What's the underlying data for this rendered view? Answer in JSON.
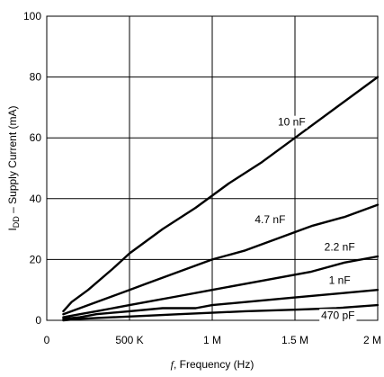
{
  "chart_data": {
    "type": "line",
    "xlabel_italic": "f",
    "xlabel_rest": ", Frequency (Hz)",
    "ylabel_main": "I",
    "ylabel_sub": "DD",
    "ylabel_rest": " – Supply Current (mA)",
    "xlim": [
      0,
      2000000
    ],
    "ylim": [
      0,
      100
    ],
    "grid": true,
    "x_ticks": [
      {
        "value": 0,
        "label": "0"
      },
      {
        "value": 500000,
        "label": "500 K"
      },
      {
        "value": 1000000,
        "label": "1 M"
      },
      {
        "value": 1500000,
        "label": "1.5 M"
      },
      {
        "value": 2000000,
        "label": "2 M"
      }
    ],
    "y_ticks": [
      {
        "value": 0,
        "label": "0"
      },
      {
        "value": 20,
        "label": "20"
      },
      {
        "value": 40,
        "label": "40"
      },
      {
        "value": 60,
        "label": "60"
      },
      {
        "value": 80,
        "label": "80"
      },
      {
        "value": 100,
        "label": "100"
      }
    ],
    "series": [
      {
        "name": "10 nF",
        "x": [
          100000,
          150000,
          250000,
          400000,
          500000,
          700000,
          900000,
          1100000,
          1300000,
          1500000,
          1750000,
          2000000
        ],
        "values": [
          3,
          6,
          10,
          17,
          22,
          30,
          37,
          45,
          52,
          60,
          70,
          80
        ],
        "label_x": 1480000,
        "label_y": 64
      },
      {
        "name": "4.7 nF",
        "x": [
          100000,
          200000,
          300000,
          400000,
          500000,
          600000,
          800000,
          1000000,
          1200000,
          1400000,
          1600000,
          1800000,
          2000000
        ],
        "values": [
          2,
          4,
          6,
          8,
          10,
          12,
          16,
          20,
          23,
          27,
          31,
          34,
          38
        ],
        "label_x": 1350000,
        "label_y": 32
      },
      {
        "name": "2.2 nF",
        "x": [
          100000,
          200000,
          300000,
          400000,
          500000,
          600000,
          800000,
          1000000,
          1200000,
          1400000,
          1600000,
          1800000,
          2000000
        ],
        "values": [
          1,
          2,
          3,
          4,
          5,
          6,
          8,
          10,
          12,
          14,
          16,
          19,
          21
        ],
        "label_x": 1770000,
        "label_y": 23
      },
      {
        "name": "1 nF",
        "x": [
          100000,
          200000,
          300000,
          500000,
          700000,
          900000,
          1000000,
          1200000,
          1500000,
          1800000,
          2000000
        ],
        "values": [
          0.5,
          1,
          2,
          3,
          4,
          4,
          5,
          6,
          7.5,
          9,
          10
        ],
        "label_x": 1770000,
        "label_y": 12
      },
      {
        "name": "470 pF",
        "x": [
          100000,
          200000,
          400000,
          600000,
          800000,
          1000000,
          1200000,
          1500000,
          1750000,
          2000000
        ],
        "values": [
          0,
          0.5,
          1,
          1.5,
          2,
          2.5,
          3,
          3.5,
          4,
          5
        ],
        "label_x": 1760000,
        "label_y": 0.5
      }
    ]
  }
}
